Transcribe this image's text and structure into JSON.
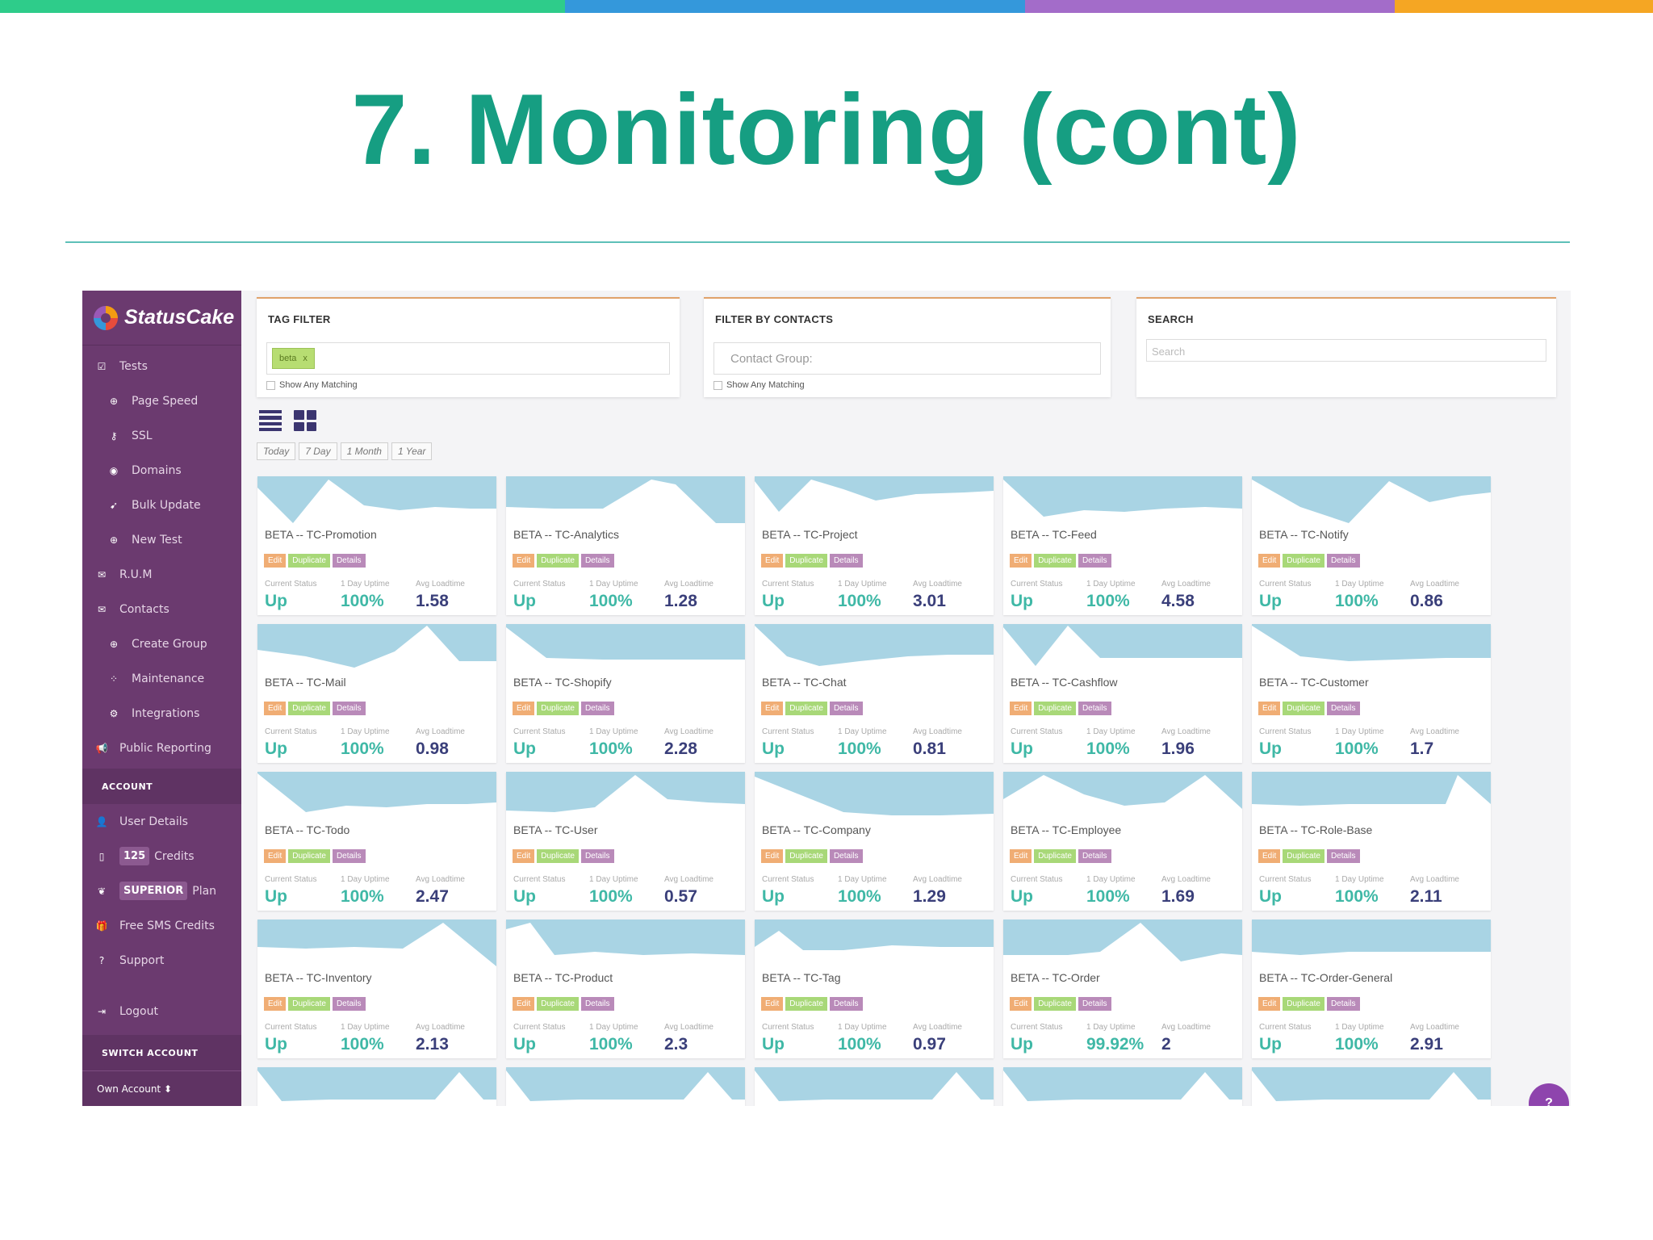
{
  "slide": {
    "title": "7. Monitoring (cont)"
  },
  "brand": {
    "logo": "StatusCake"
  },
  "colors": {
    "stripe": [
      "#2ecc8a",
      "#3498db",
      "#a36cc9",
      "#f5a623"
    ],
    "title": "#169e82",
    "sidebar": "#6b3a6f",
    "status_up": "#3fb8a6",
    "loadtime": "#3a3f7a",
    "sparkline": "#a9d4e4"
  },
  "sidebar": {
    "items": [
      {
        "label": "Tests",
        "icon": "checkbox-icon"
      },
      {
        "label": "Page Speed",
        "icon": "circle-plus-icon"
      },
      {
        "label": "SSL",
        "icon": "key-icon"
      },
      {
        "label": "Domains",
        "icon": "globe-icon"
      },
      {
        "label": "Bulk Update",
        "icon": "rocket-icon"
      },
      {
        "label": "New Test",
        "icon": "circle-plus-icon"
      },
      {
        "label": "R.U.M",
        "icon": "envelope-icon"
      },
      {
        "label": "Contacts",
        "icon": "envelope-icon"
      },
      {
        "label": "Create Group",
        "icon": "circle-plus-icon"
      },
      {
        "label": "Maintenance",
        "icon": "spinner-icon"
      },
      {
        "label": "Integrations",
        "icon": "cogs-icon"
      },
      {
        "label": "Public Reporting",
        "icon": "bullhorn-icon"
      }
    ],
    "account_header": "ACCOUNT",
    "user_details": "User Details",
    "credits_count": "125",
    "credits_label": "Credits",
    "plan_badge": "SUPERIOR",
    "plan_label": "Plan",
    "free_sms": "Free SMS Credits",
    "support": "Support",
    "logout": "Logout",
    "switch_header": "SWITCH ACCOUNT",
    "own_account": "Own Account ⬍"
  },
  "filters": {
    "tag_title": "TAG FILTER",
    "tag_value": "beta",
    "tag_remove": "x",
    "tag_show_any": "Show Any Matching",
    "contacts_title": "FILTER BY CONTACTS",
    "contacts_placeholder": "Contact Group:",
    "contacts_show_any": "Show Any Matching",
    "search_title": "SEARCH",
    "search_placeholder": "Search"
  },
  "ranges": [
    "Today",
    "7 Day",
    "1 Month",
    "1 Year"
  ],
  "card_labels": {
    "status": "Current Status",
    "uptime": "1 Day Uptime",
    "load": "Avg Loadtime",
    "edit": "Edit",
    "duplicate": "Duplicate",
    "details": "Details"
  },
  "tests": [
    {
      "name": "BETA -- TC-Promotion",
      "status": "Up",
      "uptime": "100%",
      "load": "1.58"
    },
    {
      "name": "BETA -- TC-Analytics",
      "status": "Up",
      "uptime": "100%",
      "load": "1.28"
    },
    {
      "name": "BETA -- TC-Project",
      "status": "Up",
      "uptime": "100%",
      "load": "3.01"
    },
    {
      "name": "BETA -- TC-Feed",
      "status": "Up",
      "uptime": "100%",
      "load": "4.58"
    },
    {
      "name": "BETA -- TC-Notify",
      "status": "Up",
      "uptime": "100%",
      "load": "0.86"
    },
    {
      "name": "BETA -- TC-Mail",
      "status": "Up",
      "uptime": "100%",
      "load": "0.98"
    },
    {
      "name": "BETA -- TC-Shopify",
      "status": "Up",
      "uptime": "100%",
      "load": "2.28"
    },
    {
      "name": "BETA -- TC-Chat",
      "status": "Up",
      "uptime": "100%",
      "load": "0.81"
    },
    {
      "name": "BETA -- TC-Cashflow",
      "status": "Up",
      "uptime": "100%",
      "load": "1.96"
    },
    {
      "name": "BETA -- TC-Customer",
      "status": "Up",
      "uptime": "100%",
      "load": "1.7"
    },
    {
      "name": "BETA -- TC-Todo",
      "status": "Up",
      "uptime": "100%",
      "load": "2.47"
    },
    {
      "name": "BETA -- TC-User",
      "status": "Up",
      "uptime": "100%",
      "load": "0.57"
    },
    {
      "name": "BETA -- TC-Company",
      "status": "Up",
      "uptime": "100%",
      "load": "1.29"
    },
    {
      "name": "BETA -- TC-Employee",
      "status": "Up",
      "uptime": "100%",
      "load": "1.69"
    },
    {
      "name": "BETA -- TC-Role-Base",
      "status": "Up",
      "uptime": "100%",
      "load": "2.11"
    },
    {
      "name": "BETA -- TC-Inventory",
      "status": "Up",
      "uptime": "100%",
      "load": "2.13"
    },
    {
      "name": "BETA -- TC-Product",
      "status": "Up",
      "uptime": "100%",
      "load": "2.3"
    },
    {
      "name": "BETA -- TC-Tag",
      "status": "Up",
      "uptime": "100%",
      "load": "0.97"
    },
    {
      "name": "BETA -- TC-Order",
      "status": "Up",
      "uptime": "99.92%",
      "load": "2"
    },
    {
      "name": "BETA -- TC-Order-General",
      "status": "Up",
      "uptime": "100%",
      "load": "2.91"
    }
  ],
  "help_icon": "?"
}
